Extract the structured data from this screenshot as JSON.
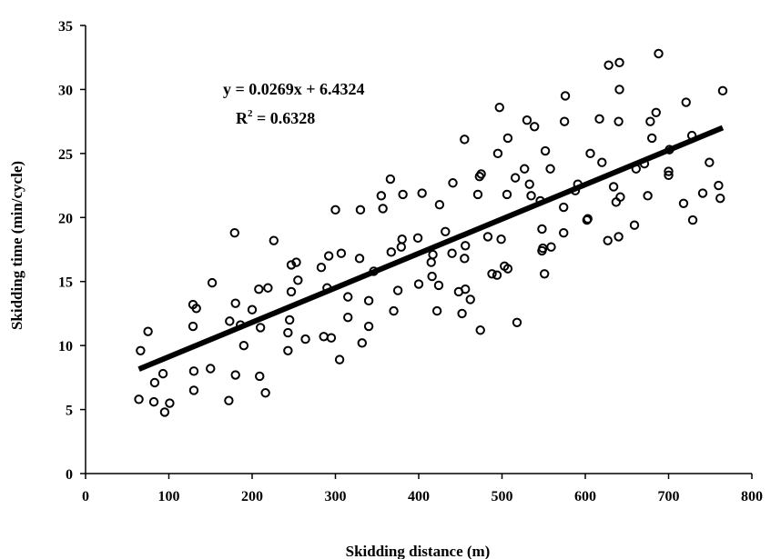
{
  "chart_data": {
    "type": "scatter",
    "title": "",
    "xlabel": "Skidding distance (m)",
    "ylabel": "Skidding time (min/cycle)",
    "xlim": [
      0,
      800
    ],
    "ylim": [
      0,
      35
    ],
    "xticks": [
      "0",
      "100",
      "200",
      "300",
      "400",
      "500",
      "600",
      "700",
      "800"
    ],
    "yticks": [
      "0",
      "5",
      "10",
      "15",
      "20",
      "25",
      "30",
      "35"
    ],
    "grid": false,
    "legend": "none",
    "marker_color": "#000000",
    "trendline": {
      "slope": 0.0269,
      "intercept": 6.4324,
      "x_range": [
        64,
        765
      ],
      "color": "#000000"
    },
    "annotations": {
      "equation": "y = 0.0269x + 6.4324",
      "r2_prefix": "R",
      "r2_sup": "2",
      "r2_suffix": " = 0.6328"
    },
    "points": [
      [
        64,
        5.8
      ],
      [
        66,
        9.6
      ],
      [
        75,
        11.1
      ],
      [
        82,
        5.6
      ],
      [
        83,
        7.1
      ],
      [
        93,
        7.8
      ],
      [
        95,
        4.8
      ],
      [
        101,
        5.5
      ],
      [
        129,
        13.2
      ],
      [
        129,
        11.5
      ],
      [
        130,
        6.5
      ],
      [
        130,
        8.0
      ],
      [
        133,
        12.9
      ],
      [
        150,
        8.2
      ],
      [
        152,
        14.9
      ],
      [
        172,
        5.7
      ],
      [
        173,
        11.9
      ],
      [
        179,
        18.8
      ],
      [
        180,
        13.3
      ],
      [
        180,
        7.7
      ],
      [
        186,
        11.6
      ],
      [
        190,
        10.0
      ],
      [
        200,
        12.8
      ],
      [
        208,
        14.4
      ],
      [
        209,
        7.6
      ],
      [
        210,
        11.4
      ],
      [
        216,
        6.3
      ],
      [
        219,
        14.5
      ],
      [
        226,
        18.2
      ],
      [
        243,
        11.0
      ],
      [
        243,
        9.6
      ],
      [
        245,
        12.0
      ],
      [
        247,
        14.2
      ],
      [
        247,
        16.3
      ],
      [
        253,
        16.5
      ],
      [
        255,
        15.1
      ],
      [
        264,
        10.5
      ],
      [
        283,
        16.1
      ],
      [
        286,
        10.7
      ],
      [
        290,
        14.5
      ],
      [
        292,
        17.0
      ],
      [
        295,
        10.6
      ],
      [
        300,
        20.6
      ],
      [
        305,
        8.9
      ],
      [
        307,
        17.2
      ],
      [
        315,
        12.2
      ],
      [
        315,
        13.8
      ],
      [
        329,
        16.8
      ],
      [
        330,
        20.6
      ],
      [
        332,
        10.2
      ],
      [
        340,
        11.5
      ],
      [
        340,
        13.5
      ],
      [
        346,
        15.8
      ],
      [
        355,
        21.7
      ],
      [
        357,
        20.7
      ],
      [
        366,
        23.0
      ],
      [
        367,
        17.3
      ],
      [
        370,
        12.7
      ],
      [
        375,
        14.3
      ],
      [
        379,
        17.7
      ],
      [
        380,
        18.3
      ],
      [
        381,
        21.8
      ],
      [
        399,
        18.4
      ],
      [
        400,
        14.8
      ],
      [
        404,
        21.9
      ],
      [
        415,
        16.5
      ],
      [
        416,
        15.4
      ],
      [
        417,
        17.1
      ],
      [
        422,
        12.7
      ],
      [
        424,
        14.7
      ],
      [
        425,
        21.0
      ],
      [
        432,
        18.9
      ],
      [
        440,
        17.2
      ],
      [
        441,
        22.7
      ],
      [
        448,
        14.2
      ],
      [
        452,
        12.5
      ],
      [
        455,
        26.1
      ],
      [
        455,
        16.8
      ],
      [
        456,
        14.4
      ],
      [
        456,
        17.8
      ],
      [
        462,
        13.6
      ],
      [
        471,
        21.8
      ],
      [
        473,
        23.2
      ],
      [
        474,
        11.2
      ],
      [
        475,
        23.4
      ],
      [
        483,
        18.5
      ],
      [
        488,
        15.6
      ],
      [
        494,
        15.5
      ],
      [
        495,
        25.0
      ],
      [
        497,
        28.6
      ],
      [
        499,
        18.3
      ],
      [
        503,
        16.2
      ],
      [
        506,
        21.8
      ],
      [
        507,
        26.2
      ],
      [
        507,
        16.0
      ],
      [
        516,
        23.1
      ],
      [
        518,
        11.8
      ],
      [
        527,
        23.8
      ],
      [
        530,
        27.6
      ],
      [
        533,
        22.6
      ],
      [
        535,
        21.7
      ],
      [
        539,
        27.1
      ],
      [
        546,
        21.3
      ],
      [
        548,
        19.1
      ],
      [
        548,
        17.4
      ],
      [
        549,
        17.6
      ],
      [
        551,
        15.6
      ],
      [
        552,
        25.2
      ],
      [
        558,
        23.8
      ],
      [
        559,
        17.7
      ],
      [
        574,
        18.8
      ],
      [
        574,
        20.8
      ],
      [
        575,
        27.5
      ],
      [
        576,
        29.5
      ],
      [
        588,
        22.1
      ],
      [
        591,
        22.6
      ],
      [
        602,
        19.8
      ],
      [
        603,
        19.9
      ],
      [
        606,
        25.0
      ],
      [
        617,
        27.7
      ],
      [
        620,
        24.3
      ],
      [
        627,
        18.2
      ],
      [
        628,
        31.9
      ],
      [
        634,
        22.4
      ],
      [
        637,
        21.2
      ],
      [
        640,
        18.5
      ],
      [
        640,
        27.5
      ],
      [
        641,
        32.1
      ],
      [
        641,
        30.0
      ],
      [
        642,
        21.6
      ],
      [
        659,
        19.4
      ],
      [
        661,
        23.8
      ],
      [
        671,
        24.2
      ],
      [
        675,
        21.7
      ],
      [
        678,
        27.5
      ],
      [
        680,
        26.2
      ],
      [
        685,
        28.2
      ],
      [
        688,
        32.8
      ],
      [
        700,
        23.3
      ],
      [
        700,
        23.6
      ],
      [
        701,
        25.3
      ],
      [
        718,
        21.1
      ],
      [
        721,
        29.0
      ],
      [
        728,
        26.4
      ],
      [
        729,
        19.8
      ],
      [
        741,
        21.9
      ],
      [
        749,
        24.3
      ],
      [
        760,
        22.5
      ],
      [
        762,
        21.5
      ],
      [
        765,
        29.9
      ]
    ]
  }
}
